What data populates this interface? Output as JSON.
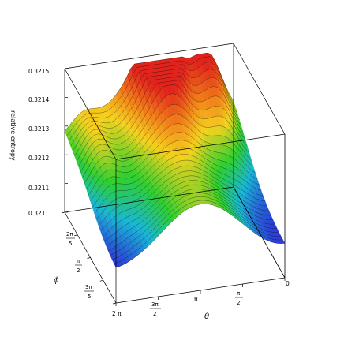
{
  "chart_data": {
    "type": "surface",
    "zlabel": "relative entropy",
    "xlabel": "θ",
    "ylabel": "ϕ",
    "zlim": [
      0.321,
      0.3215
    ],
    "z_ticks": [
      "0.321",
      "0.3211",
      "0.3212",
      "0.3213",
      "0.3214",
      "0.3215"
    ],
    "theta_ticks": [
      {
        "whole": "0"
      },
      {
        "num": "π",
        "den": "2"
      },
      {
        "whole": "π"
      },
      {
        "num": "3π",
        "den": "2"
      },
      {
        "whole": "2 π"
      }
    ],
    "phi_ticks": [
      {
        "num": "2π",
        "den": "5"
      },
      {
        "num": "π",
        "den": "2"
      },
      {
        "num": "3π",
        "den": "5"
      }
    ],
    "theta_range": [
      0,
      6.2832
    ],
    "phi_range": [
      1.2566,
      1.885
    ],
    "description_note": "3D surface colored by height (red = high, violet = low) with black contour lines",
    "colors": {
      "high": "#e0231c",
      "mid_high": "#f5d21e",
      "mid": "#2ecf2e",
      "mid_low": "#19b6d6",
      "low": "#2a3fd6",
      "lowest": "#c81cd2"
    }
  }
}
